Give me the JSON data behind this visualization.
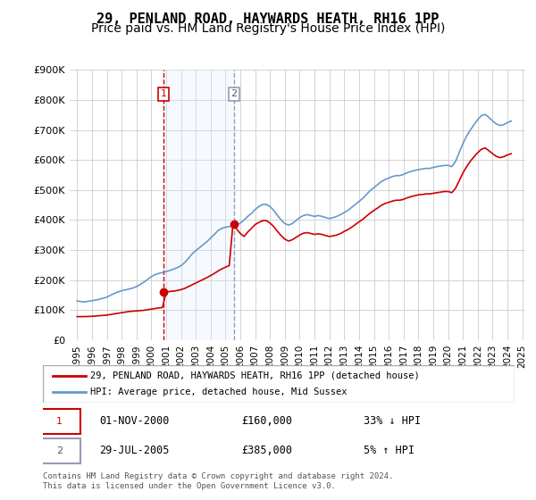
{
  "title": "29, PENLAND ROAD, HAYWARDS HEATH, RH16 1PP",
  "subtitle": "Price paid vs. HM Land Registry's House Price Index (HPI)",
  "title_fontsize": 11,
  "subtitle_fontsize": 10,
  "xlabel": "",
  "ylabel": "",
  "ylim": [
    0,
    900000
  ],
  "yticks": [
    0,
    100000,
    200000,
    300000,
    400000,
    500000,
    600000,
    700000,
    800000,
    900000
  ],
  "ytick_labels": [
    "£0",
    "£100K",
    "£200K",
    "£300K",
    "£400K",
    "£500K",
    "£600K",
    "£700K",
    "£800K",
    "£900K"
  ],
  "background_color": "#ffffff",
  "plot_bg_color": "#ffffff",
  "grid_color": "#cccccc",
  "red_line_color": "#cc0000",
  "blue_line_color": "#6699cc",
  "shade_color": "#ddeeff",
  "transaction1": {
    "date_num": 2000.83,
    "price": 160000,
    "label": "1",
    "vline_color": "#cc0000",
    "date_str": "01-NOV-2000",
    "price_str": "£160,000",
    "info": "33% ↓ HPI"
  },
  "transaction2": {
    "date_num": 2005.58,
    "price": 385000,
    "label": "2",
    "vline_color": "#aaaacc",
    "date_str": "29-JUL-2005",
    "price_str": "£385,000",
    "info": "5% ↑ HPI"
  },
  "legend_line1": "29, PENLAND ROAD, HAYWARDS HEATH, RH16 1PP (detached house)",
  "legend_line2": "HPI: Average price, detached house, Mid Sussex",
  "footer": "Contains HM Land Registry data © Crown copyright and database right 2024.\nThis data is licensed under the Open Government Licence v3.0.",
  "hpi_data": {
    "years": [
      1995.0,
      1995.25,
      1995.5,
      1995.75,
      1996.0,
      1996.25,
      1996.5,
      1996.75,
      1997.0,
      1997.25,
      1997.5,
      1997.75,
      1998.0,
      1998.25,
      1998.5,
      1998.75,
      1999.0,
      1999.25,
      1999.5,
      1999.75,
      2000.0,
      2000.25,
      2000.5,
      2000.75,
      2001.0,
      2001.25,
      2001.5,
      2001.75,
      2002.0,
      2002.25,
      2002.5,
      2002.75,
      2003.0,
      2003.25,
      2003.5,
      2003.75,
      2004.0,
      2004.25,
      2004.5,
      2004.75,
      2005.0,
      2005.25,
      2005.5,
      2005.75,
      2006.0,
      2006.25,
      2006.5,
      2006.75,
      2007.0,
      2007.25,
      2007.5,
      2007.75,
      2008.0,
      2008.25,
      2008.5,
      2008.75,
      2009.0,
      2009.25,
      2009.5,
      2009.75,
      2010.0,
      2010.25,
      2010.5,
      2010.75,
      2011.0,
      2011.25,
      2011.5,
      2011.75,
      2012.0,
      2012.25,
      2012.5,
      2012.75,
      2013.0,
      2013.25,
      2013.5,
      2013.75,
      2014.0,
      2014.25,
      2014.5,
      2014.75,
      2015.0,
      2015.25,
      2015.5,
      2015.75,
      2016.0,
      2016.25,
      2016.5,
      2016.75,
      2017.0,
      2017.25,
      2017.5,
      2017.75,
      2018.0,
      2018.25,
      2018.5,
      2018.75,
      2019.0,
      2019.25,
      2019.5,
      2019.75,
      2020.0,
      2020.25,
      2020.5,
      2020.75,
      2021.0,
      2021.25,
      2021.5,
      2021.75,
      2022.0,
      2022.25,
      2022.5,
      2022.75,
      2023.0,
      2023.25,
      2023.5,
      2023.75,
      2024.0,
      2024.25
    ],
    "values": [
      130000,
      128000,
      127000,
      129000,
      131000,
      133000,
      136000,
      139000,
      143000,
      149000,
      155000,
      160000,
      164000,
      167000,
      170000,
      173000,
      178000,
      185000,
      193000,
      202000,
      211000,
      218000,
      222000,
      225000,
      228000,
      232000,
      236000,
      241000,
      248000,
      258000,
      272000,
      287000,
      298000,
      308000,
      318000,
      328000,
      340000,
      352000,
      365000,
      372000,
      376000,
      378000,
      380000,
      382000,
      390000,
      400000,
      412000,
      422000,
      435000,
      445000,
      452000,
      452000,
      445000,
      432000,
      415000,
      400000,
      388000,
      383000,
      388000,
      398000,
      408000,
      415000,
      418000,
      415000,
      412000,
      415000,
      412000,
      408000,
      405000,
      408000,
      412000,
      418000,
      425000,
      432000,
      442000,
      452000,
      462000,
      472000,
      485000,
      498000,
      508000,
      518000,
      528000,
      535000,
      540000,
      545000,
      548000,
      548000,
      552000,
      558000,
      562000,
      565000,
      568000,
      570000,
      572000,
      572000,
      575000,
      578000,
      580000,
      582000,
      582000,
      578000,
      595000,
      625000,
      655000,
      680000,
      700000,
      718000,
      735000,
      748000,
      752000,
      742000,
      730000,
      720000,
      715000,
      718000,
      725000,
      730000
    ]
  },
  "price_data": {
    "years": [
      1995.0,
      1995.25,
      1995.5,
      1995.75,
      1996.0,
      1996.25,
      1996.5,
      1996.75,
      1997.0,
      1997.25,
      1997.5,
      1997.75,
      1998.0,
      1998.25,
      1998.5,
      1998.75,
      1999.0,
      1999.25,
      1999.5,
      1999.75,
      2000.0,
      2000.25,
      2000.5,
      2000.75,
      2001.0,
      2001.25,
      2001.5,
      2001.75,
      2002.0,
      2002.25,
      2002.5,
      2002.75,
      2003.0,
      2003.25,
      2003.5,
      2003.75,
      2004.0,
      2004.25,
      2004.5,
      2004.75,
      2005.0,
      2005.25,
      2005.5,
      2005.75,
      2006.0,
      2006.25,
      2006.5,
      2006.75,
      2007.0,
      2007.25,
      2007.5,
      2007.75,
      2008.0,
      2008.25,
      2008.5,
      2008.75,
      2009.0,
      2009.25,
      2009.5,
      2009.75,
      2010.0,
      2010.25,
      2010.5,
      2010.75,
      2011.0,
      2011.25,
      2011.5,
      2011.75,
      2012.0,
      2012.25,
      2012.5,
      2012.75,
      2013.0,
      2013.25,
      2013.5,
      2013.75,
      2014.0,
      2014.25,
      2014.5,
      2014.75,
      2015.0,
      2015.25,
      2015.5,
      2015.75,
      2016.0,
      2016.25,
      2016.5,
      2016.75,
      2017.0,
      2017.25,
      2017.5,
      2017.75,
      2018.0,
      2018.25,
      2018.5,
      2018.75,
      2019.0,
      2019.25,
      2019.5,
      2019.75,
      2020.0,
      2020.25,
      2020.5,
      2020.75,
      2021.0,
      2021.25,
      2021.5,
      2021.75,
      2022.0,
      2022.25,
      2022.5,
      2022.75,
      2023.0,
      2023.25,
      2023.5,
      2023.75,
      2024.0,
      2024.25
    ],
    "values": [
      78000,
      78000,
      78000,
      78500,
      79000,
      80000,
      81000,
      82000,
      83000,
      85000,
      87000,
      89000,
      91000,
      93000,
      95000,
      96000,
      97000,
      98000,
      99000,
      101000,
      103000,
      105000,
      107000,
      108000,
      160000,
      162000,
      163000,
      165000,
      168000,
      172000,
      178000,
      184000,
      190000,
      196000,
      202000,
      208000,
      215000,
      222000,
      230000,
      237000,
      243000,
      248000,
      385000,
      370000,
      355000,
      345000,
      360000,
      372000,
      385000,
      392000,
      398000,
      398000,
      390000,
      378000,
      362000,
      348000,
      336000,
      330000,
      334000,
      342000,
      350000,
      356000,
      358000,
      355000,
      352000,
      354000,
      352000,
      348000,
      345000,
      347000,
      350000,
      355000,
      362000,
      368000,
      376000,
      385000,
      394000,
      402000,
      413000,
      423000,
      432000,
      440000,
      449000,
      455000,
      459000,
      463000,
      466000,
      466000,
      469000,
      474000,
      478000,
      481000,
      484000,
      485000,
      487000,
      487000,
      489000,
      491000,
      493000,
      495000,
      495000,
      491000,
      506000,
      531000,
      557000,
      578000,
      596000,
      611000,
      625000,
      636000,
      640000,
      631000,
      621000,
      612000,
      608000,
      611000,
      617000,
      621000
    ]
  }
}
